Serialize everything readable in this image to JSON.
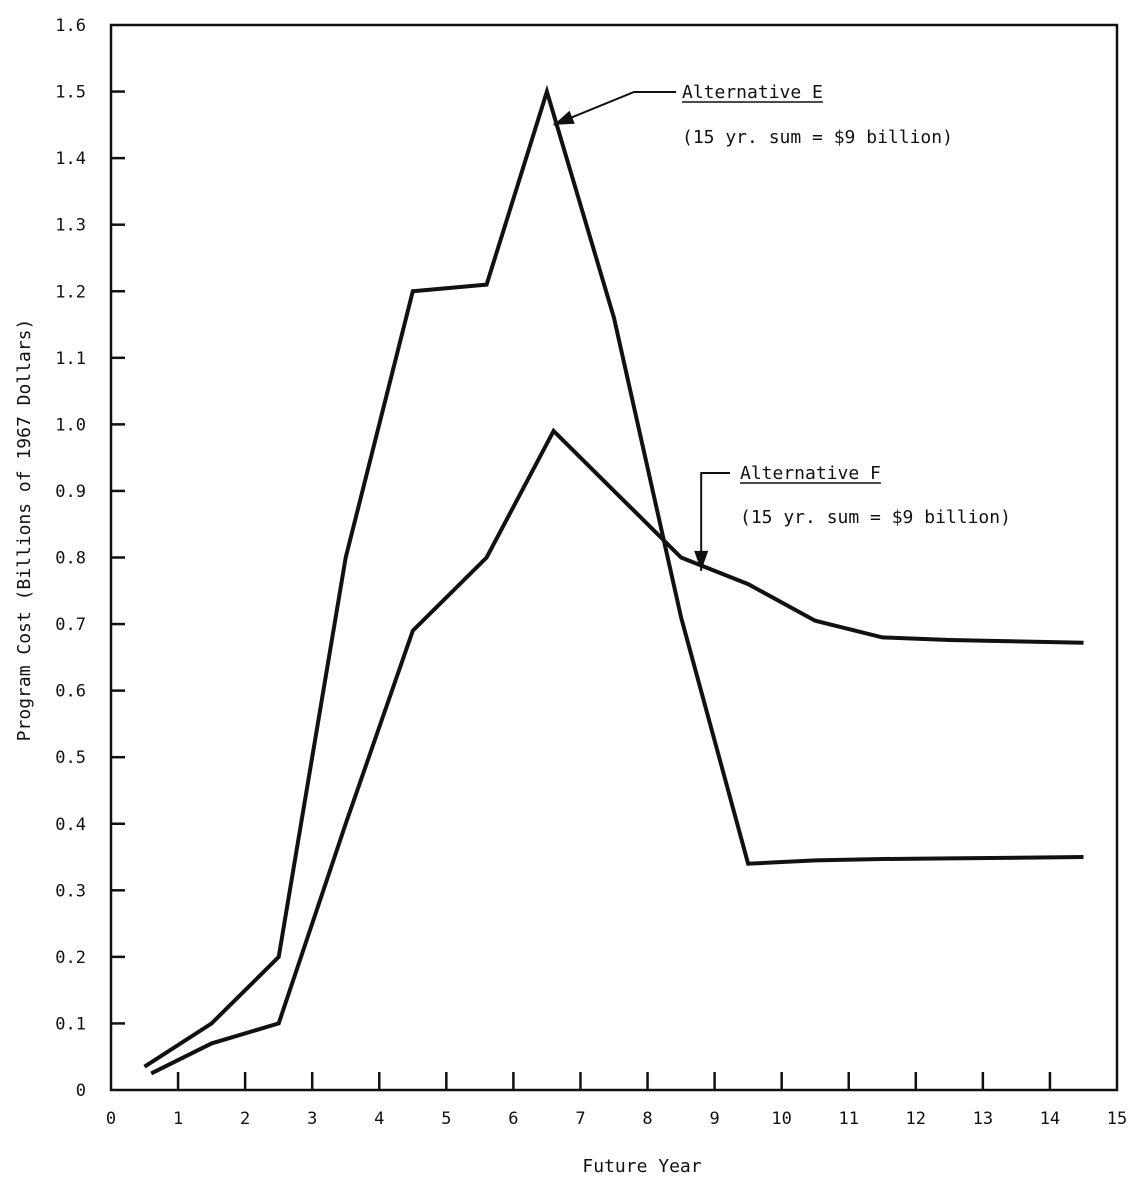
{
  "chart_data": {
    "type": "line",
    "title": "",
    "xlabel": "Future Year",
    "ylabel": "Program Cost (Billions of 1967 Dollars)",
    "xlim": [
      0,
      15
    ],
    "ylim": [
      0,
      1.6
    ],
    "x_ticks": [
      "0",
      "1",
      "2",
      "3",
      "4",
      "5",
      "6",
      "7",
      "8",
      "9",
      "10",
      "11",
      "12",
      "13",
      "14",
      "15"
    ],
    "y_ticks": [
      "0",
      "0.1",
      "0.2",
      "0.3",
      "0.4",
      "0.5",
      "0.6",
      "0.7",
      "0.8",
      "0.9",
      "1.0",
      "1.1",
      "1.2",
      "1.3",
      "1.4",
      "1.5",
      "1.6"
    ],
    "grid": false,
    "series": [
      {
        "name": "Alternative E",
        "x": [
          0.5,
          1.5,
          2.5,
          3.5,
          4.5,
          5.6,
          6.5,
          7.5,
          8.5,
          9.5,
          10.5,
          11.5,
          12.5,
          13.5,
          14.5
        ],
        "y": [
          0.035,
          0.1,
          0.2,
          0.8,
          1.2,
          1.21,
          1.5,
          1.16,
          0.71,
          0.34,
          0.345,
          0.347,
          0.348,
          0.349,
          0.35
        ]
      },
      {
        "name": "Alternative F",
        "x": [
          0.6,
          1.5,
          2.5,
          3.5,
          4.5,
          5.6,
          6.6,
          7.5,
          8.5,
          9.5,
          10.5,
          11.5,
          12.5,
          13.5,
          14.5
        ],
        "y": [
          0.025,
          0.07,
          0.1,
          0.4,
          0.69,
          0.8,
          0.99,
          0.9,
          0.8,
          0.76,
          0.705,
          0.68,
          0.676,
          0.674,
          0.672
        ]
      }
    ],
    "annotations": [
      {
        "series": "Alternative E",
        "title": "Alternative E",
        "text": "(15 yr. sum = $9 billion)",
        "point_x": 6.6,
        "point_y": 1.45
      },
      {
        "series": "Alternative F",
        "title": "Alternative F",
        "text": "(15 yr. sum = $9 billion)",
        "point_x": 8.8,
        "point_y": 0.78
      }
    ]
  }
}
